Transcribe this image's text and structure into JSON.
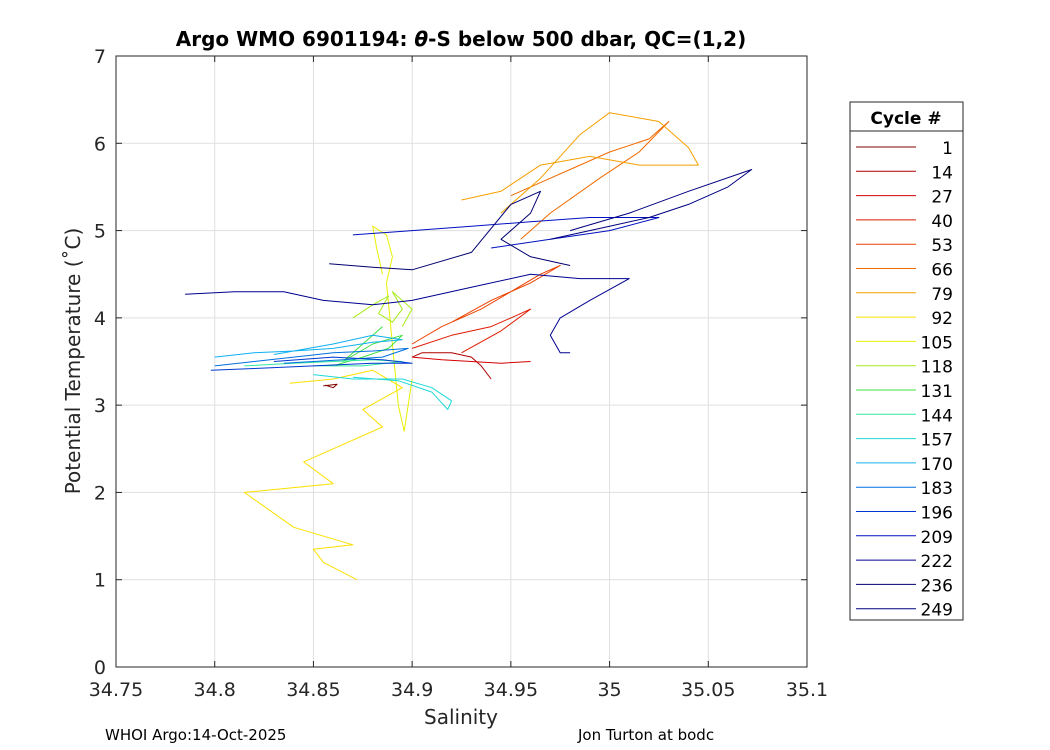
{
  "chart_data": {
    "type": "line",
    "title_prefix": "Argo WMO 6901194: ",
    "title_theta": "θ",
    "title_suffix": "-S below 500 dbar,  QC=(1,2)",
    "xlabel": "Salinity",
    "ylabel": "Potential Temperature (˚C)",
    "xlim": [
      34.75,
      35.1
    ],
    "ylim": [
      0,
      7
    ],
    "xticks": [
      34.75,
      34.8,
      34.85,
      34.9,
      34.95,
      35,
      35.05,
      35.1
    ],
    "xtick_labels": [
      "34.75",
      "34.8",
      "34.85",
      "34.9",
      "34.95",
      "35",
      "35.05",
      "35.1"
    ],
    "yticks": [
      0,
      1,
      2,
      3,
      4,
      5,
      6,
      7
    ],
    "ytick_labels": [
      "0",
      "1",
      "2",
      "3",
      "4",
      "5",
      "6",
      "7"
    ],
    "grid": true,
    "legend_title": "Cycle #",
    "legend_position": "right-outside",
    "legend": [
      {
        "label": "1",
        "color": "#800000"
      },
      {
        "label": "14",
        "color": "#b00000"
      },
      {
        "label": "27",
        "color": "#d40000"
      },
      {
        "label": "40",
        "color": "#e01a00"
      },
      {
        "label": "53",
        "color": "#ec4200"
      },
      {
        "label": "66",
        "color": "#f06a00"
      },
      {
        "label": "79",
        "color": "#f5a000"
      },
      {
        "label": "92",
        "color": "#fbe000"
      },
      {
        "label": "105",
        "color": "#e8f000"
      },
      {
        "label": "118",
        "color": "#a6ec18"
      },
      {
        "label": "131",
        "color": "#40e040"
      },
      {
        "label": "144",
        "color": "#30e8a0"
      },
      {
        "label": "157",
        "color": "#20d8d8"
      },
      {
        "label": "170",
        "color": "#10b0f0"
      },
      {
        "label": "183",
        "color": "#0070e0"
      },
      {
        "label": "196",
        "color": "#0038d0"
      },
      {
        "label": "209",
        "color": "#0010c0"
      },
      {
        "label": "222",
        "color": "#000090"
      },
      {
        "label": "236",
        "color": "#000070"
      },
      {
        "label": "249",
        "color": "#000080"
      }
    ],
    "series": [
      {
        "name": "1",
        "color": "#800000",
        "points": [
          [
            34.855,
            3.22
          ],
          [
            34.862,
            3.24
          ],
          [
            34.86,
            3.2
          ],
          [
            34.856,
            3.23
          ]
        ]
      },
      {
        "name": "14",
        "color": "#b00000",
        "points": [
          [
            34.94,
            3.3
          ],
          [
            34.935,
            3.45
          ],
          [
            34.93,
            3.55
          ],
          [
            34.92,
            3.6
          ],
          [
            34.905,
            3.6
          ],
          [
            34.9,
            3.55
          ]
        ]
      },
      {
        "name": "27",
        "color": "#d40000",
        "points": [
          [
            34.9,
            3.55
          ],
          [
            34.915,
            3.52
          ],
          [
            34.93,
            3.5
          ],
          [
            34.945,
            3.48
          ],
          [
            34.96,
            3.5
          ]
        ]
      },
      {
        "name": "40",
        "color": "#e01a00",
        "points": [
          [
            34.9,
            3.65
          ],
          [
            34.92,
            3.8
          ],
          [
            34.94,
            3.9
          ],
          [
            34.95,
            4.0
          ],
          [
            34.96,
            4.1
          ],
          [
            34.945,
            3.85
          ],
          [
            34.925,
            3.6
          ]
        ]
      },
      {
        "name": "53",
        "color": "#ec4200",
        "points": [
          [
            34.9,
            3.7
          ],
          [
            34.915,
            3.9
          ],
          [
            34.935,
            4.1
          ],
          [
            34.95,
            4.3
          ],
          [
            34.965,
            4.5
          ],
          [
            34.975,
            4.6
          ],
          [
            34.96,
            4.4
          ],
          [
            34.94,
            4.2
          ],
          [
            34.92,
            3.95
          ]
        ]
      },
      {
        "name": "66",
        "color": "#f06a00",
        "points": [
          [
            34.95,
            5.4
          ],
          [
            34.965,
            5.55
          ],
          [
            34.98,
            5.7
          ],
          [
            35.0,
            5.9
          ],
          [
            35.02,
            6.05
          ],
          [
            35.03,
            6.25
          ],
          [
            35.015,
            5.9
          ],
          [
            34.995,
            5.6
          ],
          [
            34.97,
            5.2
          ],
          [
            34.955,
            4.9
          ]
        ]
      },
      {
        "name": "79",
        "color": "#f5a000",
        "points": [
          [
            34.925,
            5.35
          ],
          [
            34.945,
            5.45
          ],
          [
            34.965,
            5.75
          ],
          [
            34.99,
            5.85
          ],
          [
            35.015,
            5.75
          ],
          [
            35.045,
            5.75
          ],
          [
            35.04,
            5.95
          ],
          [
            35.025,
            6.25
          ],
          [
            35.0,
            6.35
          ],
          [
            34.985,
            6.1
          ],
          [
            34.965,
            5.6
          ],
          [
            34.945,
            5.2
          ]
        ]
      },
      {
        "name": "92",
        "color": "#fbe000",
        "points": [
          [
            34.872,
            1.0
          ],
          [
            34.855,
            1.2
          ],
          [
            34.85,
            1.35
          ],
          [
            34.87,
            1.4
          ],
          [
            34.84,
            1.6
          ],
          [
            34.815,
            2.0
          ],
          [
            34.86,
            2.1
          ],
          [
            34.845,
            2.35
          ],
          [
            34.86,
            2.5
          ],
          [
            34.885,
            2.75
          ],
          [
            34.875,
            2.95
          ],
          [
            34.895,
            3.2
          ],
          [
            34.88,
            3.4
          ],
          [
            34.86,
            3.3
          ],
          [
            34.838,
            3.25
          ]
        ]
      },
      {
        "name": "105",
        "color": "#e8f000",
        "points": [
          [
            34.9,
            3.3
          ],
          [
            34.898,
            3.0
          ],
          [
            34.896,
            2.7
          ],
          [
            34.893,
            3.0
          ],
          [
            34.887,
            4.4
          ],
          [
            34.89,
            4.7
          ],
          [
            34.887,
            4.95
          ],
          [
            34.88,
            5.05
          ],
          [
            34.882,
            4.8
          ],
          [
            34.885,
            4.5
          ]
        ]
      },
      {
        "name": "118",
        "color": "#a6ec18",
        "points": [
          [
            34.87,
            4.0
          ],
          [
            34.88,
            4.15
          ],
          [
            34.888,
            4.25
          ],
          [
            34.883,
            4.05
          ],
          [
            34.89,
            3.95
          ],
          [
            34.895,
            4.1
          ],
          [
            34.89,
            4.3
          ],
          [
            34.9,
            4.1
          ],
          [
            34.895,
            3.9
          ]
        ]
      },
      {
        "name": "131",
        "color": "#40e040",
        "points": [
          [
            34.86,
            3.45
          ],
          [
            34.875,
            3.55
          ],
          [
            34.888,
            3.65
          ],
          [
            34.895,
            3.8
          ],
          [
            34.88,
            3.7
          ],
          [
            34.865,
            3.5
          ],
          [
            34.885,
            3.9
          ]
        ]
      },
      {
        "name": "144",
        "color": "#30e8a0",
        "points": [
          [
            34.815,
            3.45
          ],
          [
            34.84,
            3.48
          ],
          [
            34.86,
            3.5
          ],
          [
            34.88,
            3.52
          ],
          [
            34.895,
            3.5
          ],
          [
            34.875,
            3.45
          ],
          [
            34.85,
            3.45
          ]
        ]
      },
      {
        "name": "157",
        "color": "#20d8d8",
        "points": [
          [
            34.85,
            3.35
          ],
          [
            34.87,
            3.3
          ],
          [
            34.895,
            3.3
          ],
          [
            34.91,
            3.2
          ],
          [
            34.92,
            3.05
          ],
          [
            34.918,
            2.95
          ],
          [
            34.91,
            3.15
          ],
          [
            34.893,
            3.28
          ],
          [
            34.87,
            3.32
          ]
        ]
      },
      {
        "name": "170",
        "color": "#10b0f0",
        "points": [
          [
            34.8,
            3.55
          ],
          [
            34.82,
            3.6
          ],
          [
            34.84,
            3.62
          ],
          [
            34.86,
            3.65
          ],
          [
            34.88,
            3.72
          ],
          [
            34.895,
            3.75
          ],
          [
            34.88,
            3.8
          ],
          [
            34.86,
            3.7
          ],
          [
            34.83,
            3.58
          ]
        ]
      },
      {
        "name": "183",
        "color": "#0070e0",
        "points": [
          [
            34.8,
            3.45
          ],
          [
            34.82,
            3.5
          ],
          [
            34.84,
            3.55
          ],
          [
            34.86,
            3.6
          ],
          [
            34.88,
            3.62
          ],
          [
            34.898,
            3.65
          ],
          [
            34.885,
            3.55
          ],
          [
            34.865,
            3.52
          ],
          [
            34.835,
            3.48
          ]
        ]
      },
      {
        "name": "196",
        "color": "#0038d0",
        "points": [
          [
            34.798,
            3.4
          ],
          [
            34.82,
            3.42
          ],
          [
            34.84,
            3.44
          ],
          [
            34.86,
            3.46
          ],
          [
            34.88,
            3.48
          ],
          [
            34.9,
            3.48
          ],
          [
            34.885,
            3.52
          ],
          [
            34.86,
            3.55
          ],
          [
            34.83,
            3.5
          ]
        ]
      },
      {
        "name": "209",
        "color": "#0010c0",
        "points": [
          [
            34.87,
            4.95
          ],
          [
            34.9,
            5.0
          ],
          [
            34.93,
            5.05
          ],
          [
            34.96,
            5.1
          ],
          [
            34.99,
            5.15
          ],
          [
            35.025,
            5.15
          ],
          [
            35.0,
            5.0
          ],
          [
            34.97,
            4.9
          ],
          [
            34.94,
            4.8
          ]
        ]
      },
      {
        "name": "222",
        "color": "#000090",
        "points": [
          [
            34.785,
            4.27
          ],
          [
            34.81,
            4.3
          ],
          [
            34.835,
            4.3
          ],
          [
            34.855,
            4.2
          ],
          [
            34.88,
            4.15
          ],
          [
            34.9,
            4.2
          ],
          [
            34.93,
            4.35
          ],
          [
            34.96,
            4.5
          ],
          [
            34.985,
            4.45
          ],
          [
            35.01,
            4.45
          ],
          [
            34.99,
            4.2
          ],
          [
            34.975,
            4.0
          ],
          [
            34.97,
            3.8
          ],
          [
            34.975,
            3.6
          ],
          [
            34.98,
            3.6
          ]
        ]
      },
      {
        "name": "236",
        "color": "#000070",
        "points": [
          [
            34.858,
            4.62
          ],
          [
            34.88,
            4.58
          ],
          [
            34.9,
            4.55
          ],
          [
            34.93,
            4.75
          ],
          [
            34.95,
            5.3
          ],
          [
            34.965,
            5.45
          ],
          [
            34.96,
            5.2
          ],
          [
            34.945,
            4.9
          ],
          [
            34.96,
            4.7
          ],
          [
            34.98,
            4.6
          ]
        ]
      },
      {
        "name": "249",
        "color": "#000080",
        "points": [
          [
            34.97,
            4.9
          ],
          [
            35.0,
            5.05
          ],
          [
            35.02,
            5.15
          ],
          [
            35.04,
            5.3
          ],
          [
            35.06,
            5.5
          ],
          [
            35.072,
            5.7
          ],
          [
            35.04,
            5.45
          ],
          [
            35.01,
            5.2
          ],
          [
            34.98,
            5.0
          ]
        ]
      }
    ]
  },
  "footer": {
    "left": "WHOI Argo:14-Oct-2025",
    "right": "Jon Turton at bodc"
  }
}
